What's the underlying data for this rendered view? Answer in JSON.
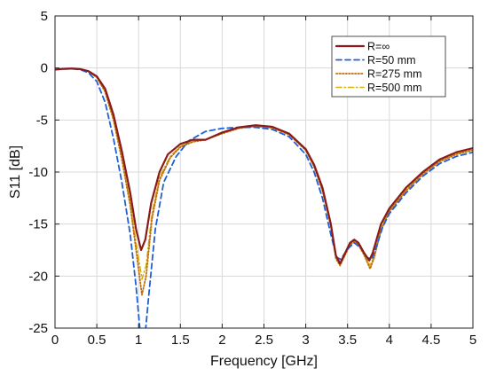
{
  "chart_data": {
    "type": "line",
    "title": "",
    "xlabel": "Frequency [GHz]",
    "ylabel": "S11 [dB]",
    "xlim": [
      0,
      5
    ],
    "ylim": [
      -25,
      5
    ],
    "xticks": [
      0,
      0.5,
      1,
      1.5,
      2,
      2.5,
      3,
      3.5,
      4,
      4.5,
      5
    ],
    "yticks": [
      -25,
      -20,
      -15,
      -10,
      -5,
      0,
      5
    ],
    "xtick_labels": [
      "0",
      "0.5",
      "1",
      "1.5",
      "2",
      "2.5",
      "3",
      "3.5",
      "4",
      "4.5",
      "5"
    ],
    "ytick_labels": [
      "-25",
      "-20",
      "-15",
      "-10",
      "-5",
      "0",
      "5"
    ],
    "grid": true,
    "legend_position": "top-right",
    "series": [
      {
        "name": "R=∞",
        "color": "#8b1a1a",
        "dash": "solid",
        "points": [
          [
            0,
            -0.15
          ],
          [
            0.1,
            -0.08
          ],
          [
            0.2,
            -0.05
          ],
          [
            0.3,
            -0.1
          ],
          [
            0.4,
            -0.3
          ],
          [
            0.5,
            -0.8
          ],
          [
            0.6,
            -2
          ],
          [
            0.7,
            -4.5
          ],
          [
            0.8,
            -8
          ],
          [
            0.9,
            -12
          ],
          [
            0.97,
            -15.5
          ],
          [
            1.03,
            -17.5
          ],
          [
            1.08,
            -16.5
          ],
          [
            1.15,
            -13
          ],
          [
            1.25,
            -10
          ],
          [
            1.35,
            -8.3
          ],
          [
            1.5,
            -7.3
          ],
          [
            1.65,
            -6.9
          ],
          [
            1.8,
            -6.9
          ],
          [
            2.0,
            -6.2
          ],
          [
            2.2,
            -5.7
          ],
          [
            2.4,
            -5.5
          ],
          [
            2.6,
            -5.65
          ],
          [
            2.8,
            -6.3
          ],
          [
            3.0,
            -7.8
          ],
          [
            3.1,
            -9.3
          ],
          [
            3.2,
            -11.5
          ],
          [
            3.3,
            -15
          ],
          [
            3.36,
            -18
          ],
          [
            3.41,
            -18.8
          ],
          [
            3.47,
            -17.8
          ],
          [
            3.53,
            -16.8
          ],
          [
            3.58,
            -16.5
          ],
          [
            3.63,
            -16.8
          ],
          [
            3.7,
            -17.8
          ],
          [
            3.76,
            -18.5
          ],
          [
            3.8,
            -17.8
          ],
          [
            3.9,
            -15
          ],
          [
            4.0,
            -13.5
          ],
          [
            4.2,
            -11.5
          ],
          [
            4.4,
            -10
          ],
          [
            4.6,
            -8.8
          ],
          [
            4.8,
            -8.1
          ],
          [
            5.0,
            -7.7
          ]
        ]
      },
      {
        "name": "R=50 mm",
        "color": "#1f5fd6",
        "dash": "dashed",
        "points": [
          [
            0,
            -0.15
          ],
          [
            0.1,
            -0.1
          ],
          [
            0.2,
            -0.08
          ],
          [
            0.3,
            -0.15
          ],
          [
            0.4,
            -0.45
          ],
          [
            0.5,
            -1.3
          ],
          [
            0.6,
            -3.3
          ],
          [
            0.7,
            -6.8
          ],
          [
            0.8,
            -11
          ],
          [
            0.9,
            -16
          ],
          [
            0.97,
            -21
          ],
          [
            1.02,
            -25.5
          ],
          [
            1.08,
            -25.5
          ],
          [
            1.12,
            -22
          ],
          [
            1.2,
            -15.5
          ],
          [
            1.3,
            -11
          ],
          [
            1.45,
            -8.5
          ],
          [
            1.6,
            -7
          ],
          [
            1.8,
            -6.1
          ],
          [
            2.0,
            -5.8
          ],
          [
            2.2,
            -5.7
          ],
          [
            2.4,
            -5.7
          ],
          [
            2.6,
            -5.9
          ],
          [
            2.8,
            -6.6
          ],
          [
            3.0,
            -8.3
          ],
          [
            3.1,
            -10
          ],
          [
            3.2,
            -12.5
          ],
          [
            3.3,
            -16
          ],
          [
            3.37,
            -18.2
          ],
          [
            3.42,
            -18.4
          ],
          [
            3.5,
            -17.4
          ],
          [
            3.58,
            -16.8
          ],
          [
            3.66,
            -17.3
          ],
          [
            3.73,
            -18.2
          ],
          [
            3.79,
            -18.4
          ],
          [
            3.84,
            -17.3
          ],
          [
            3.92,
            -15.3
          ],
          [
            4.0,
            -14
          ],
          [
            4.2,
            -12
          ],
          [
            4.4,
            -10.4
          ],
          [
            4.6,
            -9.2
          ],
          [
            4.8,
            -8.5
          ],
          [
            5.0,
            -8.1
          ]
        ]
      },
      {
        "name": "R=275 mm",
        "color": "#c0700b",
        "dash": "dotted",
        "points": [
          [
            0,
            -0.15
          ],
          [
            0.1,
            -0.08
          ],
          [
            0.2,
            -0.06
          ],
          [
            0.3,
            -0.12
          ],
          [
            0.4,
            -0.35
          ],
          [
            0.5,
            -0.9
          ],
          [
            0.6,
            -2.3
          ],
          [
            0.7,
            -5
          ],
          [
            0.8,
            -8.8
          ],
          [
            0.9,
            -13.2
          ],
          [
            0.97,
            -17.5
          ],
          [
            1.04,
            -21.8
          ],
          [
            1.09,
            -20
          ],
          [
            1.16,
            -14.5
          ],
          [
            1.25,
            -10.8
          ],
          [
            1.38,
            -8.6
          ],
          [
            1.5,
            -7.6
          ],
          [
            1.65,
            -7.1
          ],
          [
            1.8,
            -6.9
          ],
          [
            2.0,
            -6.3
          ],
          [
            2.2,
            -5.8
          ],
          [
            2.4,
            -5.6
          ],
          [
            2.6,
            -5.75
          ],
          [
            2.8,
            -6.4
          ],
          [
            3.0,
            -7.9
          ],
          [
            3.1,
            -9.5
          ],
          [
            3.2,
            -11.8
          ],
          [
            3.3,
            -15.2
          ],
          [
            3.36,
            -18.3
          ],
          [
            3.41,
            -19
          ],
          [
            3.47,
            -18
          ],
          [
            3.53,
            -17
          ],
          [
            3.58,
            -16.7
          ],
          [
            3.63,
            -17
          ],
          [
            3.7,
            -18
          ],
          [
            3.77,
            -19.3
          ],
          [
            3.82,
            -18.2
          ],
          [
            3.9,
            -15.6
          ],
          [
            4.0,
            -13.8
          ],
          [
            4.2,
            -11.8
          ],
          [
            4.4,
            -10.2
          ],
          [
            4.6,
            -9
          ],
          [
            4.8,
            -8.3
          ],
          [
            5.0,
            -7.9
          ]
        ]
      },
      {
        "name": "R=500 mm",
        "color": "#d4b10f",
        "dash": "dashdot",
        "points": [
          [
            0,
            -0.15
          ],
          [
            0.1,
            -0.08
          ],
          [
            0.2,
            -0.06
          ],
          [
            0.3,
            -0.12
          ],
          [
            0.4,
            -0.33
          ],
          [
            0.5,
            -0.85
          ],
          [
            0.6,
            -2.2
          ],
          [
            0.7,
            -4.8
          ],
          [
            0.8,
            -8.5
          ],
          [
            0.9,
            -12.8
          ],
          [
            0.97,
            -16.8
          ],
          [
            1.04,
            -20.3
          ],
          [
            1.09,
            -19
          ],
          [
            1.16,
            -14
          ],
          [
            1.25,
            -10.5
          ],
          [
            1.38,
            -8.5
          ],
          [
            1.5,
            -7.5
          ],
          [
            1.65,
            -7.05
          ],
          [
            1.8,
            -6.9
          ],
          [
            2.0,
            -6.25
          ],
          [
            2.2,
            -5.75
          ],
          [
            2.4,
            -5.55
          ],
          [
            2.6,
            -5.7
          ],
          [
            2.8,
            -6.35
          ],
          [
            3.0,
            -7.85
          ],
          [
            3.1,
            -9.4
          ],
          [
            3.2,
            -11.7
          ],
          [
            3.3,
            -15.1
          ],
          [
            3.36,
            -18.2
          ],
          [
            3.41,
            -18.9
          ],
          [
            3.47,
            -17.9
          ],
          [
            3.53,
            -16.9
          ],
          [
            3.58,
            -16.6
          ],
          [
            3.63,
            -16.9
          ],
          [
            3.7,
            -17.9
          ],
          [
            3.77,
            -19
          ],
          [
            3.82,
            -18
          ],
          [
            3.9,
            -15.4
          ],
          [
            4.0,
            -13.7
          ],
          [
            4.2,
            -11.7
          ],
          [
            4.4,
            -10.1
          ],
          [
            4.6,
            -8.9
          ],
          [
            4.8,
            -8.2
          ],
          [
            5.0,
            -7.8
          ]
        ]
      }
    ]
  }
}
